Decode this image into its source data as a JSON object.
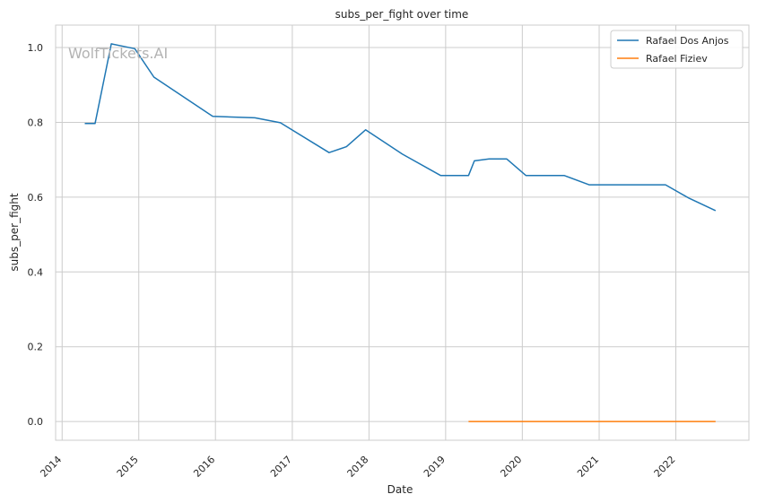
{
  "chart_data": {
    "type": "line",
    "title": "subs_per_fight over time",
    "xlabel": "Date",
    "ylabel": "subs_per_fight",
    "watermark": "WolfTickets.AI",
    "x_ticks": [
      "2014",
      "2015",
      "2016",
      "2017",
      "2018",
      "2019",
      "2020",
      "2021",
      "2022"
    ],
    "y_ticks": [
      "0.0",
      "0.2",
      "0.4",
      "0.6",
      "0.8",
      "1.0"
    ],
    "xlim": [
      "2013-12-01",
      "2022-12-15"
    ],
    "ylim": [
      -0.05,
      1.06
    ],
    "grid": true,
    "legend_position": "upper right",
    "series": [
      {
        "name": "Rafael Dos Anjos",
        "color": "#1f77b4",
        "points": [
          [
            "2014-04-19",
            0.797
          ],
          [
            "2014-06-07",
            0.797
          ],
          [
            "2014-08-23",
            1.01
          ],
          [
            "2014-12-13",
            0.997
          ],
          [
            "2015-03-14",
            0.921
          ],
          [
            "2015-12-19",
            0.816
          ],
          [
            "2016-07-07",
            0.812
          ],
          [
            "2016-11-05",
            0.799
          ],
          [
            "2017-06-25",
            0.719
          ],
          [
            "2017-09-16",
            0.735
          ],
          [
            "2017-12-16",
            0.78
          ],
          [
            "2018-06-09",
            0.715
          ],
          [
            "2018-12-08",
            0.658
          ],
          [
            "2019-04-20",
            0.658
          ],
          [
            "2019-05-18",
            0.697
          ],
          [
            "2019-07-27",
            0.702
          ],
          [
            "2019-10-19",
            0.702
          ],
          [
            "2020-01-18",
            0.658
          ],
          [
            "2020-07-18",
            0.658
          ],
          [
            "2020-11-14",
            0.633
          ],
          [
            "2021-11-13",
            0.633
          ],
          [
            "2022-03-05",
            0.597
          ],
          [
            "2022-07-09",
            0.564
          ]
        ]
      },
      {
        "name": "Rafael Fiziev",
        "color": "#ff7f0e",
        "points": [
          [
            "2019-04-20",
            0.0
          ],
          [
            "2022-07-09",
            0.0
          ]
        ]
      }
    ]
  }
}
